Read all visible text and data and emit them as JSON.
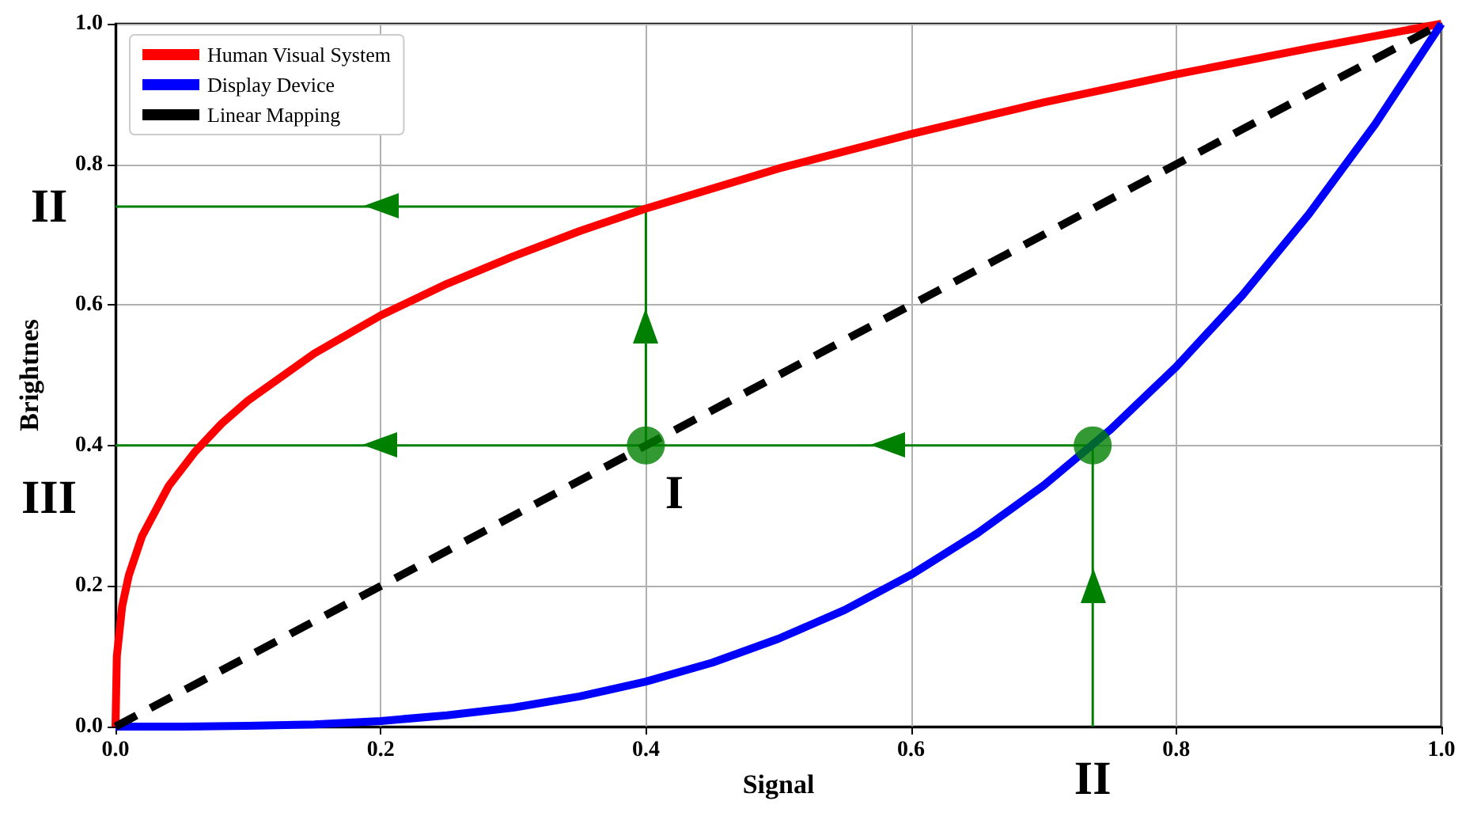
{
  "chart_data": {
    "type": "line",
    "xlabel": "Signal",
    "ylabel": "Brightnes",
    "xlim": [
      0,
      1
    ],
    "ylim": [
      0,
      1
    ],
    "xticks": [
      {
        "value": 0,
        "label": "0.0"
      },
      {
        "value": 0.2,
        "label": "0.2"
      },
      {
        "value": 0.4,
        "label": "0.4"
      },
      {
        "value": 0.6,
        "label": "0.6"
      },
      {
        "value": 0.8,
        "label": "0.8"
      },
      {
        "value": 1,
        "label": "1.0"
      }
    ],
    "yticks": [
      {
        "value": 0,
        "label": "0.0"
      },
      {
        "value": 0.2,
        "label": "0.2"
      },
      {
        "value": 0.4,
        "label": "0.4"
      },
      {
        "value": 0.6,
        "label": "0.6"
      },
      {
        "value": 0.8,
        "label": "0.8"
      },
      {
        "value": 1,
        "label": "1.0"
      }
    ],
    "grid": true,
    "legend": "top left",
    "marker": "none",
    "series": [
      {
        "name": "Human Visual System",
        "color": "#ff0000",
        "x": [
          0,
          0.001,
          0.005,
          0.01,
          0.02,
          0.04,
          0.06,
          0.08,
          0.1,
          0.15,
          0.2,
          0.25,
          0.3,
          0.35,
          0.4,
          0.5,
          0.6,
          0.7,
          0.8,
          0.9,
          1
        ],
        "values": [
          0,
          0.1,
          0.171,
          0.215,
          0.271,
          0.342,
          0.391,
          0.431,
          0.464,
          0.531,
          0.585,
          0.63,
          0.669,
          0.705,
          0.737,
          0.794,
          0.843,
          0.888,
          0.928,
          0.965,
          1
        ]
      },
      {
        "name": "Display Device",
        "color": "#0000ff",
        "x": [
          0,
          0.05,
          0.1,
          0.15,
          0.2,
          0.25,
          0.3,
          0.35,
          0.4,
          0.45,
          0.5,
          0.55,
          0.6,
          0.65,
          0.7,
          0.75,
          0.8,
          0.85,
          0.9,
          0.95,
          1
        ],
        "values": [
          0,
          0,
          0.001,
          0.003,
          0.008,
          0.016,
          0.027,
          0.043,
          0.064,
          0.091,
          0.125,
          0.166,
          0.216,
          0.275,
          0.343,
          0.422,
          0.512,
          0.614,
          0.729,
          0.857,
          1
        ]
      },
      {
        "name": "Linear Mapping",
        "color": "#000000",
        "line_style": "dashed",
        "x": [
          0,
          1
        ],
        "values": [
          0,
          1
        ]
      },
      {
        "color": "#008000",
        "x": [
          0.4,
          0.4,
          0
        ],
        "values": [
          0.4,
          0.74,
          0.74
        ]
      },
      {
        "color": "#008000",
        "x": [
          0.737,
          0.737,
          0
        ],
        "values": [
          0,
          0.4,
          0.4
        ]
      },
      {
        "type": "scatter",
        "color": "#008000",
        "marker": "circle",
        "x": [
          0.4,
          0.737
        ],
        "values": [
          0.4,
          0.4
        ]
      }
    ],
    "annotations": [
      {
        "text": "II",
        "x": 0,
        "y": 0.74
      },
      {
        "text": "III",
        "x": 0,
        "y": 0.4
      },
      {
        "text": "I",
        "x": 0.4,
        "y": 0.4
      },
      {
        "text": "II",
        "x": 0.737,
        "y": 0
      }
    ]
  }
}
